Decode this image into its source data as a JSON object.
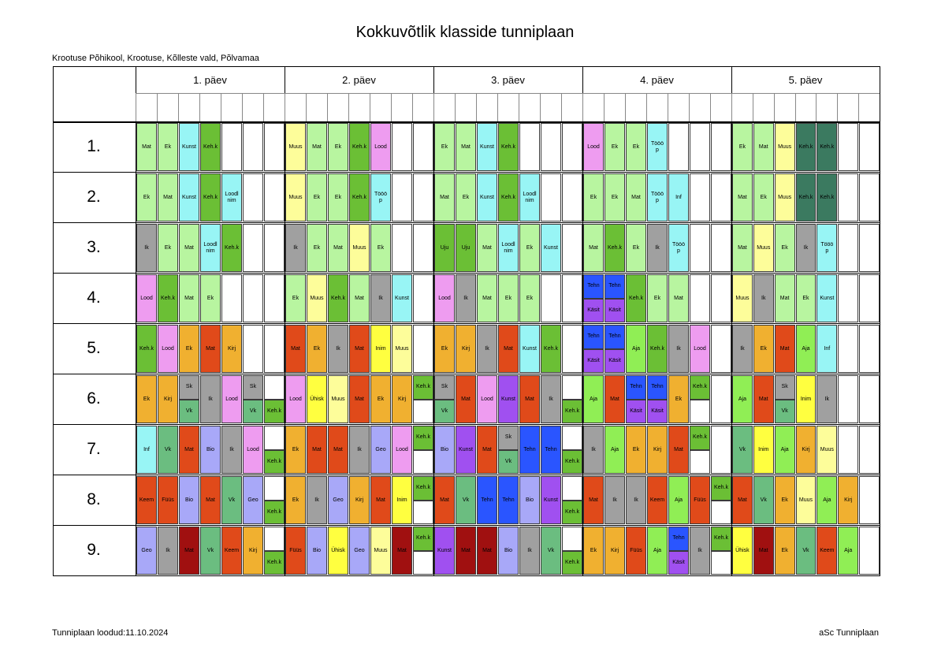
{
  "title": "Kokkuvõtlik klasside tunniplaan",
  "school": "Krootuse Põhikool, Krootuse, Kõlleste vald, Põlvamaa",
  "footer_left": "Tunniplaan loodud:11.10.2024",
  "footer_right": "aSc Tunniplaan",
  "days": [
    "1. päev",
    "2. päev",
    "3. päev",
    "4. päev",
    "5. päev"
  ],
  "rows": [
    "1.",
    "2.",
    "3.",
    "4.",
    "5.",
    "6.",
    "7.",
    "8.",
    "9."
  ],
  "colors": {
    "Mat": "#b8f5a0",
    "Ek": "#b8f5a0",
    "Kunst": "#98f5f5",
    "Keh.k": "#6bbf35",
    "Lood": "#ee9cf0",
    "Muus": "#fdfd9a",
    "Tööö\np": "#98f5f5",
    "Inf": "#98f5f5",
    "Loodl\nnim": "#98f5f5",
    "Ik": "#a0a0a0",
    "Uju": "#6bbf35",
    "Tehn": "#2a55ff",
    "Käsit": "#a050f0",
    "Kirj": "#f0b030",
    "Inim": "#ffff40",
    "Aja": "#90ee55",
    "Sk": "#a0a0a0",
    "Vk": "#6bbd80",
    "Ühisk": "#ffff40",
    "Bio": "#a8a8f8",
    "Geo": "#a8a8f8",
    "Keem": "#e04a1a",
    "Füüs": "#e04a1a",
    "dark": "#3b7a60"
  },
  "schedule": {
    "r1": [
      [
        "Mat",
        "Ek",
        "Kunst",
        "Keh.k",
        "",
        "",
        ""
      ],
      [
        "Muus",
        "Mat",
        "Ek",
        "Keh.k",
        "Lood",
        "",
        ""
      ],
      [
        "Ek",
        "Mat",
        "Kunst",
        "Keh.k",
        "",
        "",
        ""
      ],
      [
        "Lood",
        "Ek",
        "Ek",
        "Tööö\np",
        "",
        "",
        ""
      ],
      [
        "Ek",
        "Mat",
        "Muus",
        "Keh.k",
        "Keh.k",
        "",
        ""
      ]
    ],
    "r2": [
      [
        "Ek",
        "Mat",
        "Kunst",
        "Keh.k",
        "Loodl\nnim",
        "",
        ""
      ],
      [
        "Muus",
        "Ek",
        "Ek",
        "Keh.k",
        "Tööö\np",
        "",
        ""
      ],
      [
        "Mat",
        "Ek",
        "Kunst",
        "Keh.k",
        "Loodl\nnim",
        "",
        ""
      ],
      [
        "Ek",
        "Ek",
        "Mat",
        "Tööö\np",
        "Inf",
        "",
        ""
      ],
      [
        "Mat",
        "Ek",
        "Muus",
        "Keh.k",
        "Keh.k",
        "",
        ""
      ]
    ],
    "r3": [
      [
        "Ik",
        "Ek",
        "Mat",
        "Loodl\nnim",
        "Keh.k",
        "",
        ""
      ],
      [
        "Ik",
        "Ek",
        "Mat",
        "Muus",
        "Ek",
        "",
        ""
      ],
      [
        "Uju",
        "Uju",
        "Mat",
        "Loodl\nnim",
        "Ek",
        "Kunst",
        ""
      ],
      [
        "Mat",
        "Keh.k",
        "Ek",
        "Ik",
        "Tööö\np",
        "",
        ""
      ],
      [
        "Mat",
        "Muus",
        "Ek",
        "Ik",
        "Tööö\np",
        "",
        ""
      ]
    ],
    "r4": [
      [
        "Lood",
        "Keh.k",
        "Mat",
        "Ek",
        "",
        "",
        ""
      ],
      [
        "Ek",
        "Muus",
        "Keh.k",
        "Mat",
        "Ik",
        "Kunst",
        ""
      ],
      [
        "Lood",
        "Ik",
        "Mat",
        "Ek",
        "Ek",
        "",
        ""
      ],
      [
        "Tehn|Käsit",
        "Tehn|Käsit",
        "Keh.k",
        "Ek",
        "Mat",
        "",
        ""
      ],
      [
        "Muus",
        "Ik",
        "Mat",
        "Ek",
        "Kunst",
        "",
        ""
      ]
    ],
    "r5": [
      [
        "Keh.k",
        "Lood",
        "Ek",
        "Mat",
        "Kirj",
        "",
        ""
      ],
      [
        "Mat",
        "Ek",
        "Ik",
        "Mat",
        "Inim",
        "Muus",
        ""
      ],
      [
        "Ek",
        "Kirj",
        "Ik",
        "Mat",
        "Kunst",
        "Keh.k",
        ""
      ],
      [
        "Tehn|Käsit",
        "Tehn|Käsit",
        "Aja",
        "Keh.k",
        "Ik",
        "Lood",
        ""
      ],
      [
        "Ik",
        "Ek",
        "Mat",
        "Aja",
        "Inf",
        "",
        ""
      ]
    ],
    "r6": [
      [
        "Ek",
        "Kirj",
        "Sk|Vk",
        "Ik",
        "Lood",
        "Sk|Vk",
        "|Keh.k"
      ],
      [
        "Lood",
        "Ühisk",
        "Muus",
        "Mat",
        "Ek",
        "Kirj",
        "Keh.k|"
      ],
      [
        "Sk|Vk",
        "Mat",
        "Lood",
        "Kunst",
        "Mat",
        "Ik",
        "|Keh.k"
      ],
      [
        "Aja",
        "Mat",
        "Tehn|Käsit",
        "Tehn|Käsit",
        "Ek",
        "Keh.k|",
        ""
      ],
      [
        "Aja",
        "Mat",
        "Sk|Vk",
        "Inim",
        "Ik",
        "",
        ""
      ]
    ],
    "r7": [
      [
        "Inf",
        "Vk",
        "Mat",
        "Bio",
        "Ik",
        "Lood",
        "|Keh.k"
      ],
      [
        "Ek",
        "Mat",
        "Mat",
        "Ik",
        "Geo",
        "Lood",
        "Keh.k|"
      ],
      [
        "Bio",
        "Kunst",
        "Mat",
        "Sk|Vk",
        "Tehn",
        "Tehn",
        "|Keh.k"
      ],
      [
        "Ik",
        "Aja",
        "Ek",
        "Kirj",
        "Mat",
        "Keh.k|",
        ""
      ],
      [
        "Vk",
        "Inim",
        "Aja",
        "Kirj",
        "Muus",
        "",
        ""
      ]
    ],
    "r8": [
      [
        "Keem",
        "Füüs",
        "Bio",
        "Mat",
        "Vk",
        "Geo",
        "|Keh.k"
      ],
      [
        "Ek",
        "Ik",
        "Geo",
        "Kirj",
        "Mat",
        "Inim",
        "Keh.k|"
      ],
      [
        "Mat",
        "Vk",
        "Tehn",
        "Tehn",
        "Bio",
        "Kunst",
        "|Keh.k"
      ],
      [
        "Mat",
        "Ik",
        "Ik",
        "Keem",
        "Aja",
        "Füüs",
        "Keh.k|"
      ],
      [
        "Mat",
        "Vk",
        "Ek",
        "Muus",
        "Aja",
        "Kirj",
        ""
      ]
    ],
    "r9": [
      [
        "Geo",
        "Ik",
        "Mat",
        "Vk",
        "Keem",
        "Kirj",
        "|Keh.k"
      ],
      [
        "Füüs",
        "Bio",
        "Ühisk",
        "Geo",
        "Muus",
        "Mat",
        "Keh.k|"
      ],
      [
        "Kunst",
        "Mat",
        "Mat",
        "Bio",
        "Ik",
        "Vk",
        "|Keh.k"
      ],
      [
        "Ek",
        "Kirj",
        "Füüs",
        "Aja",
        "Tehn|Käsit",
        "Ik",
        "Keh.k|"
      ],
      [
        "Ühisk",
        "Mat",
        "Ek",
        "Vk",
        "Keem",
        "Aja",
        ""
      ]
    ]
  }
}
